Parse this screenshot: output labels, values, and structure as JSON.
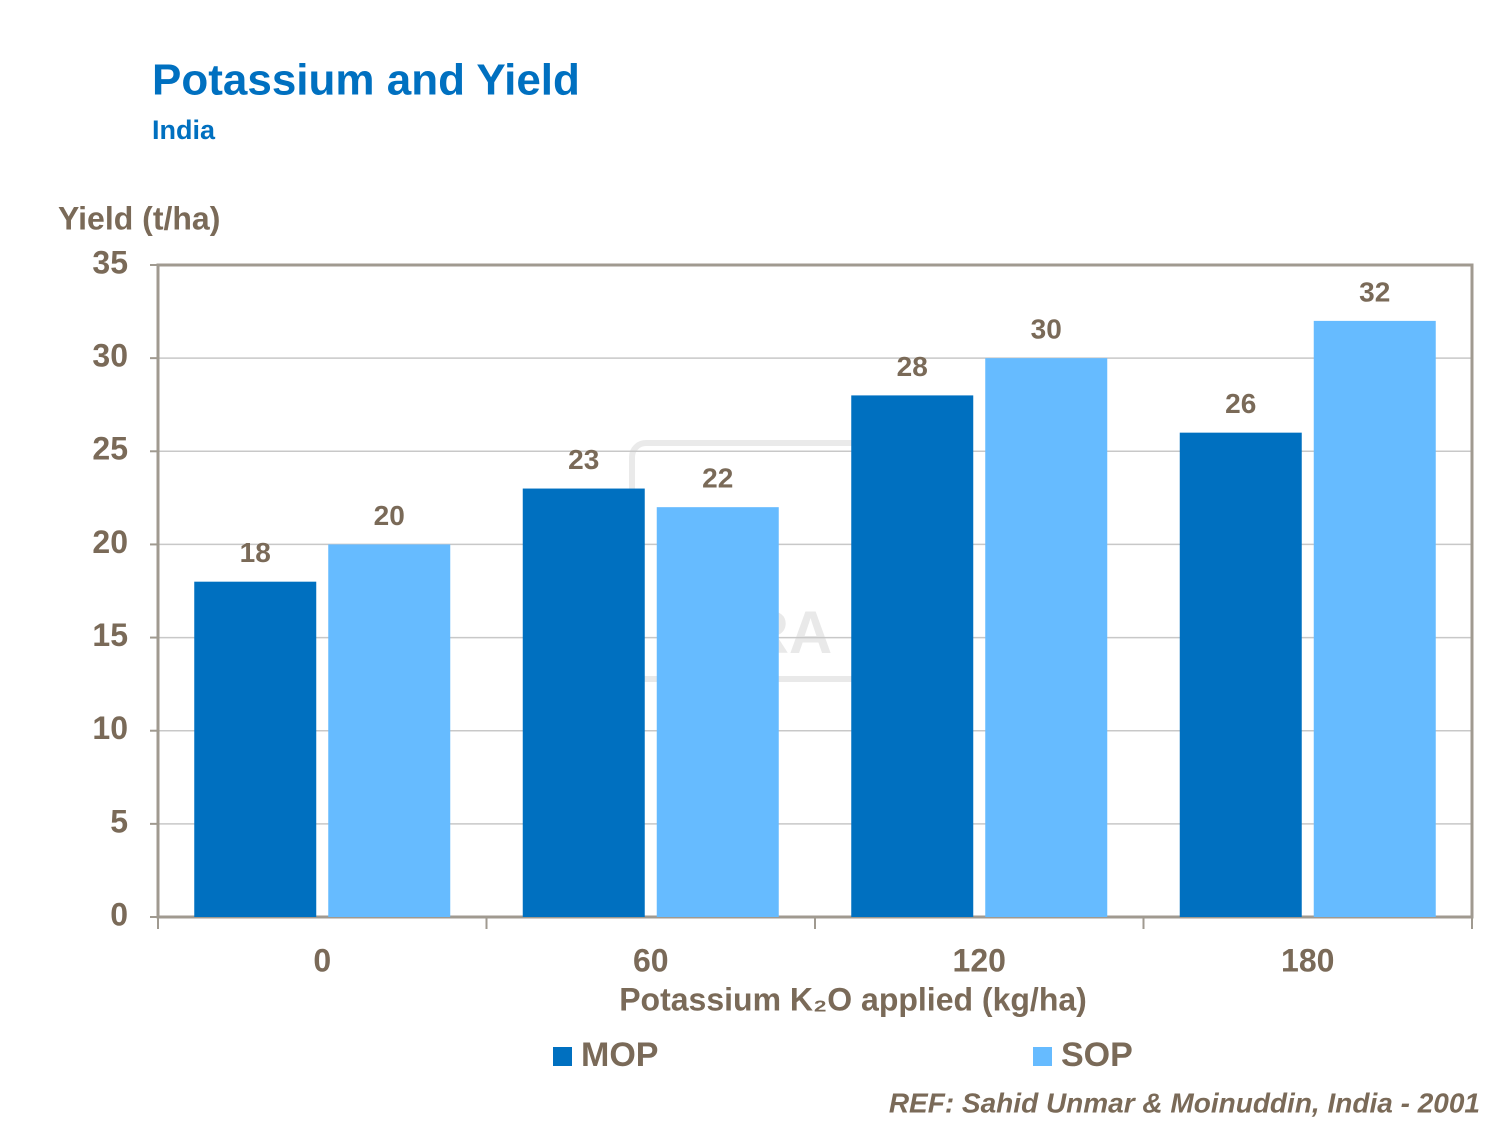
{
  "chart_data": {
    "type": "bar",
    "title": "Potassium and Yield",
    "subtitle": "India",
    "y_label": "Yield (t/ha)",
    "x_label": "Potassium K₂O applied (kg/ha)",
    "categories": [
      "0",
      "60",
      "120",
      "180"
    ],
    "series": [
      {
        "name": "MOP",
        "color": "#0070c0",
        "values": [
          18,
          23,
          28,
          26
        ]
      },
      {
        "name": "SOP",
        "color": "#66bbff",
        "values": [
          20,
          22,
          30,
          32
        ]
      }
    ],
    "ylim": [
      0,
      35
    ],
    "yticks": [
      0,
      5,
      10,
      15,
      20,
      25,
      30,
      35
    ],
    "grid": true,
    "legend": "bottom",
    "watermark": "YARA",
    "note": "REF: Sahid Unmar & Moinuddin, India - 2001"
  }
}
